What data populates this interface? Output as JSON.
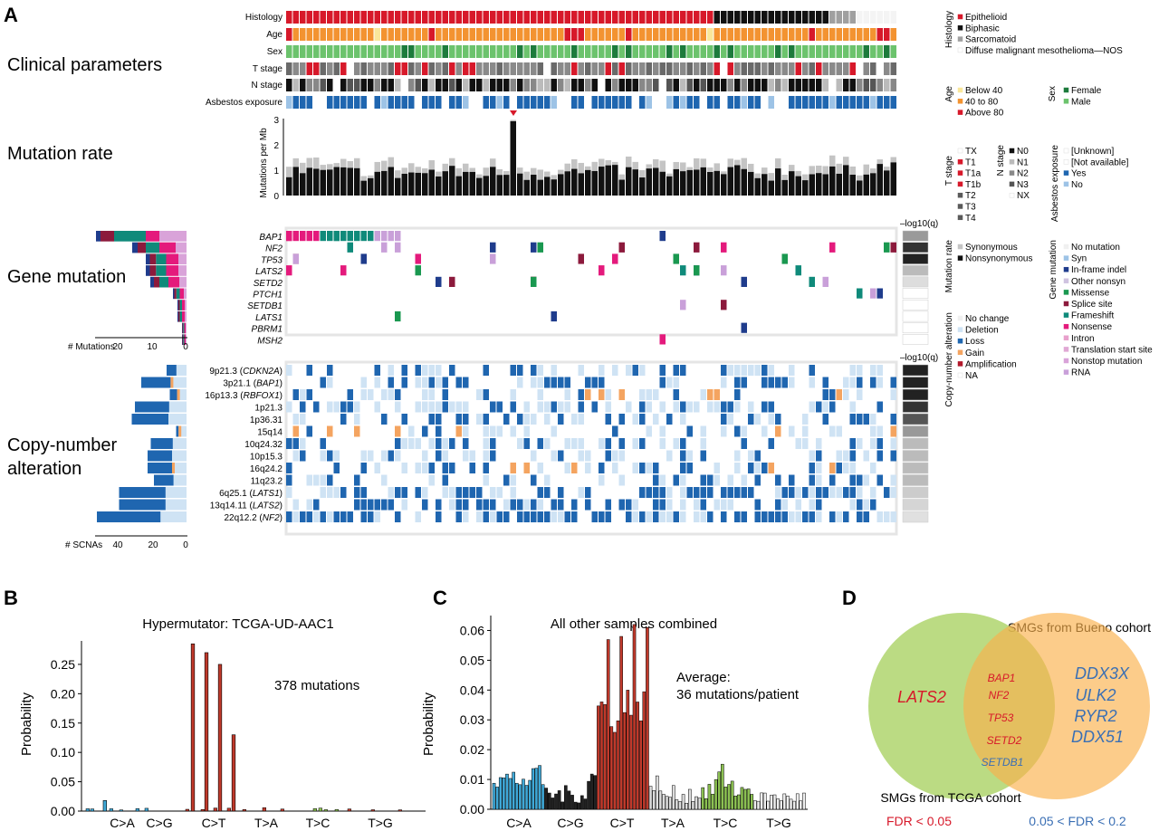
{
  "panels": {
    "a": "A",
    "b": "B",
    "c": "C",
    "d": "D"
  },
  "sections": {
    "clinical": "Clinical parameters",
    "mutrate": "Mutation rate",
    "genemut": "Gene mutation",
    "cna1": "Copy-number",
    "cna2": "alteration"
  },
  "clinical_rows": [
    "Histology",
    "Age",
    "Sex",
    "T stage",
    "N stage",
    "Asbestos exposure"
  ],
  "genes": [
    "BAP1",
    "NF2",
    "TP53",
    "LATS2",
    "SETD2",
    "PTCH1",
    "SETDB1",
    "LATS1",
    "PBRM1",
    "MSH2"
  ],
  "cna_rows": [
    {
      "pre": "9p21.3 (",
      "gene": "CDKN2A",
      "post": ")"
    },
    {
      "pre": "3p21.1 (",
      "gene": "BAP1",
      "post": ")"
    },
    {
      "pre": "16p13.3 (",
      "gene": "RBFOX1",
      "post": ")"
    },
    {
      "pre": "1p21.3",
      "gene": "",
      "post": ""
    },
    {
      "pre": "1p36.31",
      "gene": "",
      "post": ""
    },
    {
      "pre": "15q14",
      "gene": "",
      "post": ""
    },
    {
      "pre": "10q24.32",
      "gene": "",
      "post": ""
    },
    {
      "pre": "10p15.3",
      "gene": "",
      "post": ""
    },
    {
      "pre": "16q24.2",
      "gene": "",
      "post": ""
    },
    {
      "pre": "11q23.2",
      "gene": "",
      "post": ""
    },
    {
      "pre": "6q25.1 (",
      "gene": "LATS1",
      "post": ")"
    },
    {
      "pre": "13q14.11 (",
      "gene": "LATS2",
      "post": ")"
    },
    {
      "pre": "22q12.2 (",
      "gene": "NF2",
      "post": ")"
    }
  ],
  "axes": {
    "mut_ylabel": "Mutations per Mb",
    "mut_ticks": [
      "0",
      "1",
      "2",
      "3"
    ],
    "log_q": "–log10(q)",
    "mut_hist_label": "# Mutations",
    "mut_hist_ticks": [
      "20",
      "10",
      "0"
    ],
    "scna_hist_label": "# SCNAs",
    "scna_hist_ticks": [
      "40",
      "20",
      "0"
    ]
  },
  "legends": {
    "histology": {
      "title": "Histology",
      "items": [
        {
          "label": "Epithelioid",
          "color": "#d7192a"
        },
        {
          "label": "Biphasic",
          "color": "#111111"
        },
        {
          "label": "Sarcomatoid",
          "color": "#a0a0a0"
        },
        {
          "label": "Diffuse malignant mesothelioma—NOS",
          "color": "#ffffff"
        }
      ]
    },
    "age": {
      "title": "Age",
      "items": [
        {
          "label": "Below 40",
          "color": "#f9e79b"
        },
        {
          "label": "40 to 80",
          "color": "#f39331"
        },
        {
          "label": "Above 80",
          "color": "#d7192a"
        }
      ]
    },
    "sex": {
      "title": "Sex",
      "items": [
        {
          "label": "Female",
          "color": "#1d7b3c"
        },
        {
          "label": "Male",
          "color": "#6cc36d"
        }
      ]
    },
    "tstage": {
      "title": "T stage",
      "items": [
        {
          "label": "TX",
          "color": "#ffffff"
        },
        {
          "label": "T1",
          "color": "#d7192a"
        },
        {
          "label": "T1a",
          "color": "#d7192a"
        },
        {
          "label": "T1b",
          "color": "#d7192a"
        },
        {
          "label": "T2",
          "color": "#5a5a5a"
        },
        {
          "label": "T3",
          "color": "#5a5a5a"
        },
        {
          "label": "T4",
          "color": "#5a5a5a"
        }
      ]
    },
    "nstage": {
      "title": "N stage",
      "items": [
        {
          "label": "N0",
          "color": "#111111"
        },
        {
          "label": "N1",
          "color": "#bbbbbb"
        },
        {
          "label": "N2",
          "color": "#888888"
        },
        {
          "label": "N3",
          "color": "#555555"
        },
        {
          "label": "NX",
          "color": "#ffffff"
        }
      ]
    },
    "asbestos": {
      "title": "Asbestos exposure",
      "items": [
        {
          "label": "[Unknown]",
          "color": "#ffffff"
        },
        {
          "label": "[Not available]",
          "color": "#ffffff"
        },
        {
          "label": "Yes",
          "color": "#1f66b0"
        },
        {
          "label": "No",
          "color": "#9dc3e6"
        }
      ]
    },
    "mutrate": {
      "title": "Mutation rate",
      "items": [
        {
          "label": "Synonymous",
          "color": "#c4c4c4"
        },
        {
          "label": "Nonsynonymous",
          "color": "#111111"
        }
      ]
    },
    "genemut": {
      "title": "Gene mutation",
      "items": [
        {
          "label": "No mutation",
          "color": "#f0f0f0"
        },
        {
          "label": "Syn",
          "color": "#9dc3e6"
        },
        {
          "label": "In-frame indel",
          "color": "#1f3c8c"
        },
        {
          "label": "Other nonsyn",
          "color": "#cfc3e0"
        },
        {
          "label": "Missense",
          "color": "#1a9850"
        },
        {
          "label": "Splice site",
          "color": "#8c1a3c"
        },
        {
          "label": "Frameshift",
          "color": "#0f8a7a"
        },
        {
          "label": "Nonsense",
          "color": "#e41a7c"
        },
        {
          "label": "Intron",
          "color": "#e8a0cc"
        },
        {
          "label": "Translation start site",
          "color": "#e0a8d4"
        },
        {
          "label": "Nonstop mutation",
          "color": "#d9a3d9"
        },
        {
          "label": "RNA",
          "color": "#c9a0d9"
        }
      ]
    },
    "cna": {
      "title": "Copy-number alteration",
      "items": [
        {
          "label": "No change",
          "color": "#f0f0f0"
        },
        {
          "label": "Deletion",
          "color": "#cfe3f4"
        },
        {
          "label": "Loss",
          "color": "#1f66b0"
        },
        {
          "label": "Gain",
          "color": "#f4a460"
        },
        {
          "label": "Amplification",
          "color": "#b2182b"
        },
        {
          "label": "NA",
          "color": "#ffffff"
        }
      ]
    }
  },
  "chart_data": [
    {
      "type": "bar",
      "panel": "B",
      "title": "Hypermutator: TCGA-UD-AAC1",
      "annotation": "378 mutations",
      "ylabel": "Probability",
      "ylim": [
        0,
        0.29
      ],
      "yticks": [
        "0.00",
        "0.05",
        "0.10",
        "0.15",
        "0.20",
        "0.25"
      ],
      "categories": [
        "C>A",
        "C>G",
        "C>T",
        "T>A",
        "T>C",
        "T>G"
      ],
      "peaks": [
        {
          "category": "C>T",
          "values": [
            0.285,
            0.27,
            0.25,
            0.13
          ]
        },
        {
          "category": "C>A",
          "values": [
            0.018
          ]
        }
      ]
    },
    {
      "type": "bar",
      "panel": "C",
      "title": "All other samples combined",
      "annotation1": "Average:",
      "annotation2": "36 mutations/patient",
      "ylabel": "Probability",
      "ylim": [
        0,
        0.065
      ],
      "yticks": [
        "0.00",
        "0.01",
        "0.02",
        "0.03",
        "0.04",
        "0.05",
        "0.06"
      ],
      "categories": [
        "C>A",
        "C>G",
        "C>T",
        "T>A",
        "T>C",
        "T>G"
      ],
      "colors": [
        "#3fa9d8",
        "#222222",
        "#c0392b",
        "#dddddd",
        "#8cc152",
        "#eeeeee"
      ]
    },
    {
      "type": "venn",
      "panel": "D",
      "left_label": "SMGs from TCGA cohort",
      "right_label": "SMGs from Bueno cohort",
      "left_only": [
        "LATS2"
      ],
      "shared": [
        "BAP1",
        "NF2",
        "TP53",
        "SETD2",
        "SETDB1"
      ],
      "right_only": [
        "DDX3X",
        "ULK2",
        "RYR2",
        "DDX51"
      ],
      "key_red": "FDR < 0.05",
      "key_blue": "0.05 < FDR < 0.2"
    }
  ]
}
